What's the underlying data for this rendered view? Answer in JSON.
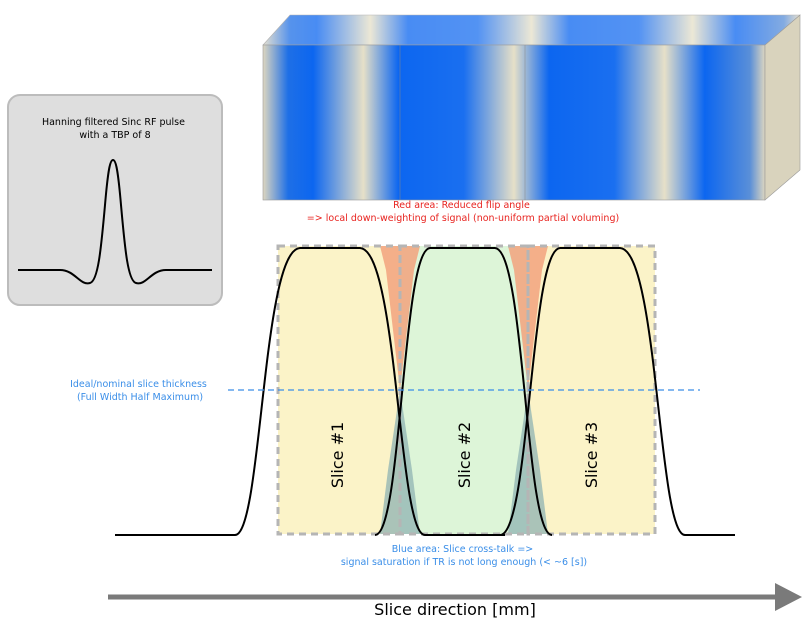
{
  "inset": {
    "title_lines": [
      "Hanning filtered Sinc RF pulse",
      "with a TBP of 8"
    ]
  },
  "red_note": {
    "lines": [
      "Red area: Reduced flip angle",
      "=> local down-weighting of signal (non-uniform partial voluming)"
    ]
  },
  "fwhm_note": {
    "lines": [
      "Ideal/nominal slice thickness",
      "(Full Width Half Maximum)"
    ]
  },
  "slices": [
    "Slice #1",
    "Slice #2",
    "Slice #3"
  ],
  "blue_note": {
    "lines": [
      "Blue area: Slice cross-talk =>",
      "signal saturation if TR is not long enough (< ~6 [s])"
    ]
  },
  "axis_label": "Slice direction [mm]"
}
